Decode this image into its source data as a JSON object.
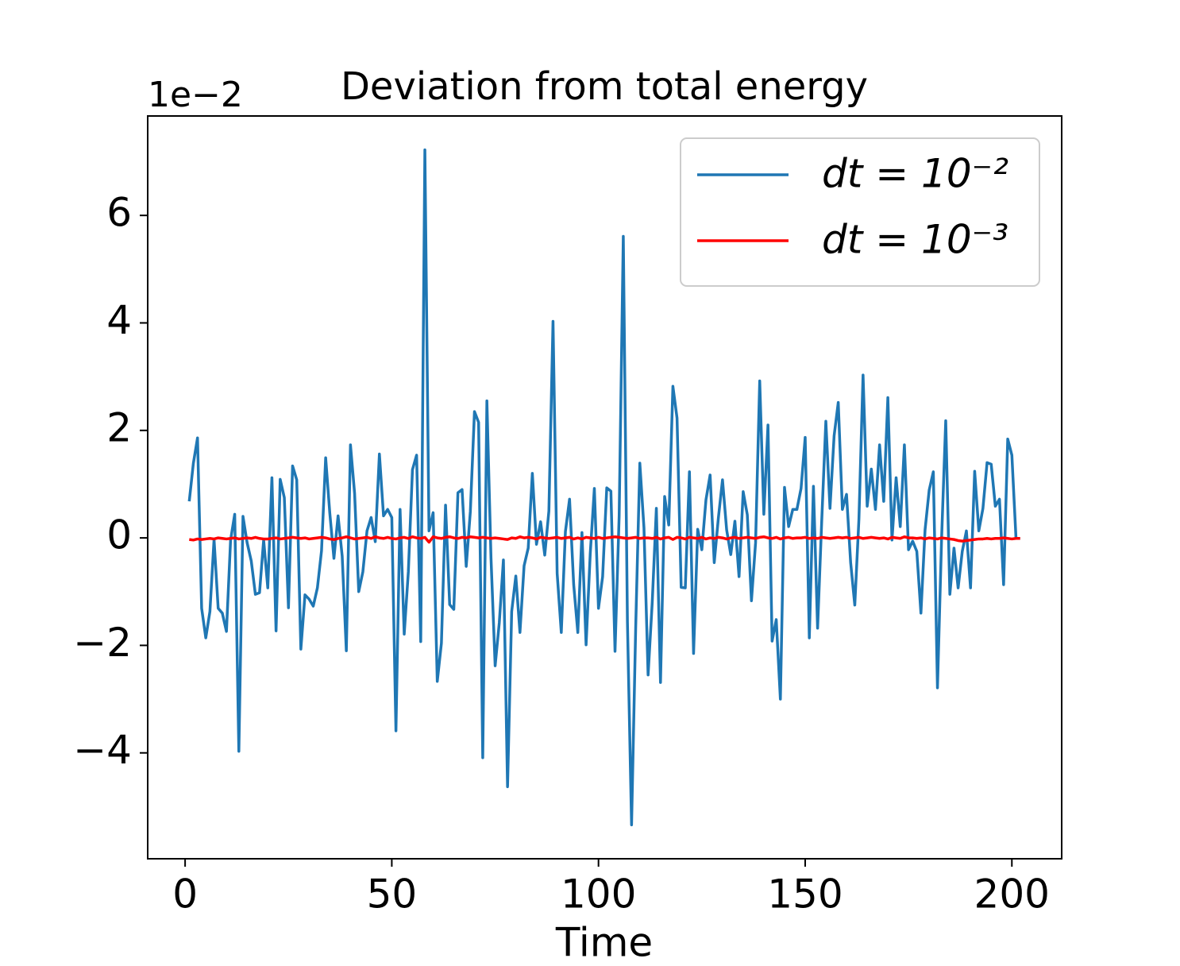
{
  "chart_data": {
    "type": "line",
    "title": "Deviation from total energy",
    "x_label": "Time",
    "offset_text": "1e−2",
    "x": [
      1,
      2,
      3,
      4,
      5,
      6,
      7,
      8,
      9,
      10,
      11,
      12,
      13,
      14,
      15,
      16,
      17,
      18,
      19,
      20,
      21,
      22,
      23,
      24,
      25,
      26,
      27,
      28,
      29,
      30,
      31,
      32,
      33,
      34,
      35,
      36,
      37,
      38,
      39,
      40,
      41,
      42,
      43,
      44,
      45,
      46,
      47,
      48,
      49,
      50,
      51,
      52,
      53,
      54,
      55,
      56,
      57,
      58,
      59,
      60,
      61,
      62,
      63,
      64,
      65,
      66,
      67,
      68,
      69,
      70,
      71,
      72,
      73,
      74,
      75,
      76,
      77,
      78,
      79,
      80,
      81,
      82,
      83,
      84,
      85,
      86,
      87,
      88,
      89,
      90,
      91,
      92,
      93,
      94,
      95,
      96,
      97,
      98,
      99,
      100,
      101,
      102,
      103,
      104,
      105,
      106,
      107,
      108,
      109,
      110,
      111,
      112,
      113,
      114,
      115,
      116,
      117,
      118,
      119,
      120,
      121,
      122,
      123,
      124,
      125,
      126,
      127,
      128,
      129,
      130,
      131,
      132,
      133,
      134,
      135,
      136,
      137,
      138,
      139,
      140,
      141,
      142,
      143,
      144,
      145,
      146,
      147,
      148,
      149,
      150,
      151,
      152,
      153,
      154,
      155,
      156,
      157,
      158,
      159,
      160,
      161,
      162,
      163,
      164,
      165,
      166,
      167,
      168,
      169,
      170,
      171,
      172,
      173,
      174,
      175,
      176,
      177,
      178,
      179,
      180,
      181,
      182,
      183,
      184,
      185,
      186,
      187,
      188,
      189,
      190,
      191,
      192,
      193,
      194,
      195,
      196,
      197,
      198,
      199,
      200,
      201,
      202
    ],
    "series": [
      {
        "name": "dt = 10⁻²",
        "color": "#1f77b4",
        "values": [
          0.68,
          1.39,
          1.86,
          -1.31,
          -1.86,
          -1.37,
          -0.03,
          -1.31,
          -1.4,
          -1.74,
          -0.04,
          0.44,
          -3.97,
          0.4,
          -0.09,
          -0.43,
          -1.05,
          -1.02,
          -0.04,
          -0.93,
          1.12,
          -1.73,
          1.09,
          0.75,
          -1.3,
          1.34,
          1.08,
          -2.07,
          -1.06,
          -1.14,
          -1.27,
          -0.93,
          -0.24,
          1.49,
          0.46,
          -0.38,
          0.41,
          -0.34,
          -2.1,
          1.73,
          0.83,
          -1.0,
          -0.63,
          0.13,
          0.38,
          -0.07,
          1.56,
          0.41,
          0.53,
          0.38,
          -3.59,
          0.53,
          -1.79,
          -0.63,
          1.27,
          1.54,
          -1.93,
          7.22,
          0.13,
          0.47,
          -2.67,
          -1.96,
          0.61,
          -1.24,
          -1.33,
          0.84,
          0.9,
          -0.53,
          0.49,
          2.35,
          2.15,
          -4.09,
          2.55,
          -0.38,
          -2.38,
          -1.58,
          -0.41,
          -4.63,
          -1.37,
          -0.71,
          -1.76,
          -0.52,
          -0.19,
          1.2,
          -0.12,
          0.3,
          -0.32,
          0.5,
          4.03,
          -0.66,
          -1.76,
          0.12,
          0.72,
          -0.87,
          -1.76,
          0.1,
          -1.99,
          -0.3,
          0.92,
          -1.31,
          -0.72,
          0.93,
          0.87,
          -2.11,
          0.41,
          5.61,
          -1.56,
          -5.34,
          -1.67,
          1.39,
          0.19,
          -2.55,
          -1.2,
          0.55,
          -2.69,
          0.77,
          0.24,
          2.82,
          2.23,
          -0.92,
          -0.93,
          1.23,
          -2.15,
          0.16,
          -0.22,
          0.71,
          1.17,
          -0.46,
          0.37,
          1.08,
          0.15,
          -0.31,
          0.31,
          -0.72,
          0.86,
          0.43,
          -1.17,
          -0.09,
          2.92,
          0.44,
          2.1,
          -1.92,
          -1.52,
          -3.0,
          0.94,
          0.21,
          0.53,
          0.53,
          0.92,
          1.87,
          -1.86,
          0.96,
          -1.68,
          0.31,
          2.17,
          0.55,
          1.9,
          2.52,
          0.53,
          0.81,
          -0.46,
          -1.25,
          0.35,
          3.03,
          0.59,
          1.28,
          0.53,
          1.73,
          0.68,
          2.61,
          -0.04,
          1.12,
          0.21,
          1.73,
          -0.22,
          -0.06,
          -0.25,
          -1.4,
          0.15,
          0.89,
          1.23,
          -2.79,
          -0.01,
          2.18,
          -1.05,
          -0.19,
          -0.93,
          -0.25,
          0.13,
          -0.93,
          1.24,
          0.13,
          0.55,
          1.4,
          1.37,
          0.59,
          0.72,
          -0.87,
          1.84,
          1.54,
          -0.01,
          -0.01
        ]
      },
      {
        "name": "dt = 10⁻³",
        "color": "#ff0000",
        "values": [
          -0.03,
          -0.04,
          -0.02,
          -0.03,
          -0.02,
          -0.01,
          -0.02,
          0.0,
          -0.01,
          -0.02,
          -0.01,
          0.0,
          -0.02,
          -0.01,
          0.0,
          -0.01,
          0.01,
          -0.01,
          -0.02,
          -0.02,
          -0.01,
          0.0,
          -0.02,
          -0.01,
          0.0,
          0.01,
          0.0,
          -0.01,
          0.0,
          -0.02,
          -0.01,
          0.0,
          0.01,
          0.0,
          -0.02,
          -0.03,
          -0.01,
          0.0,
          0.02,
          0.0,
          -0.02,
          -0.01,
          0.0,
          0.01,
          -0.01,
          0.02,
          0.0,
          -0.01,
          0.01,
          -0.01,
          -0.02,
          0.0,
          0.01,
          -0.01,
          0.02,
          0.0,
          -0.01,
          0.01,
          -0.08,
          0.02,
          0.0,
          -0.01,
          0.01,
          0.02,
          0.0,
          -0.01,
          0.01,
          0.0,
          0.02,
          0.01,
          0.0,
          0.01,
          0.0,
          -0.01,
          0.0,
          -0.01,
          -0.02,
          -0.03,
          0.0,
          -0.01,
          0.02,
          0.0,
          0.01,
          0.0,
          -0.02,
          0.01,
          0.0,
          -0.01,
          0.0,
          0.01,
          -0.01,
          0.0,
          0.01,
          -0.02,
          0.0,
          -0.02,
          0.01,
          0.0,
          -0.01,
          0.01,
          -0.01,
          0.0,
          0.01,
          0.02,
          0.01,
          0.0,
          -0.01,
          0.0,
          0.01,
          -0.01,
          0.0,
          0.0,
          -0.01,
          0.01,
          -0.02,
          0.0,
          0.01,
          -0.03,
          0.01,
          0.0,
          -0.02,
          0.01,
          0.0,
          -0.01,
          0.01,
          -0.02,
          0.0,
          -0.01,
          0.01,
          0.0,
          -0.02,
          0.0,
          0.01,
          -0.01,
          0.0,
          0.01,
          0.0,
          -0.01,
          0.01,
          0.02,
          0.0,
          -0.01,
          0.01,
          -0.02,
          0.0,
          0.01,
          -0.01,
          0.0,
          0.0,
          0.01,
          -0.01,
          0.0,
          -0.01,
          0.01,
          0.0,
          -0.01,
          0.0,
          0.01,
          0.0,
          0.01,
          -0.01,
          0.0,
          0.01,
          -0.01,
          0.0,
          0.01,
          0.0,
          -0.01,
          0.0,
          -0.02,
          0.01,
          0.0,
          -0.01,
          0.02,
          0.0,
          0.0,
          -0.01,
          0.0,
          -0.02,
          0.0,
          -0.01,
          -0.02,
          0.0,
          -0.01,
          -0.02,
          -0.03,
          -0.05,
          -0.06,
          -0.05,
          -0.04,
          -0.03,
          -0.02,
          -0.02,
          -0.01,
          -0.02,
          -0.01,
          -0.01,
          0.0,
          -0.01,
          -0.02,
          -0.01,
          -0.01
        ]
      }
    ],
    "xlim": [
      -9.05,
      212.05
    ],
    "xticks": [
      0,
      50,
      100,
      150,
      200
    ],
    "ylim": [
      -5.97,
      7.85
    ],
    "yticks": [
      {
        "value": -4,
        "label": "−4"
      },
      {
        "value": -2,
        "label": "−2"
      },
      0,
      2,
      4,
      6
    ],
    "grid": false,
    "legend": "upper right"
  }
}
